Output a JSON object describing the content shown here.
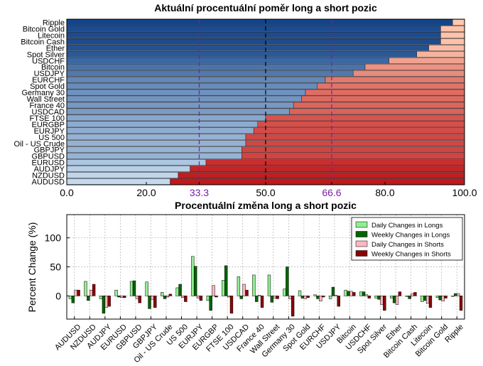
{
  "chart_data": [
    {
      "type": "bar",
      "orientation": "horizontal",
      "stacked": true,
      "title": "Aktuální procentuální poměr long a short pozic",
      "categories": [
        "AUDUSD",
        "NZDUSD",
        "AUDJPY",
        "EURUSD",
        "GBPUSD",
        "GBPJPY",
        "Oil - US Crude",
        "US 500",
        "EURJPY",
        "EURGBP",
        "FTSE 100",
        "USDCAD",
        "France 40",
        "Wall Street",
        "Germany 30",
        "Spot Gold",
        "EURCHF",
        "USDJPY",
        "Bitcoin",
        "USDCHF",
        "Spot Silver",
        "Ether",
        "Bitcoin Cash",
        "Litecoin",
        "Bitcoin Gold",
        "Ripple"
      ],
      "series": [
        {
          "name": "Long",
          "values": [
            26,
            28,
            31,
            35,
            44,
            44,
            45,
            45,
            47,
            48,
            50,
            56,
            57,
            59,
            60,
            63,
            65,
            72,
            75,
            81,
            88,
            91,
            94,
            94,
            94,
            97
          ]
        },
        {
          "name": "Short",
          "values": [
            74,
            72,
            69,
            65,
            56,
            56,
            55,
            55,
            53,
            52,
            50,
            44,
            43,
            41,
            40,
            37,
            35,
            28,
            25,
            19,
            12,
            9,
            6,
            6,
            6,
            3
          ]
        }
      ],
      "xlim": [
        0,
        100
      ],
      "xticks": [
        "0.0",
        "20.0",
        "33.3",
        "50.0",
        "66.6",
        "80.0",
        "100.0"
      ],
      "reference_lines": [
        {
          "value": 33.3,
          "label": "33.3",
          "color": "#7b1fa2"
        },
        {
          "value": 50,
          "label": "50.0",
          "color": "#000000"
        },
        {
          "value": 66.6,
          "label": "66.6",
          "color": "#7b1fa2"
        }
      ]
    },
    {
      "type": "bar",
      "title": "Procentuální změna long a short pozic",
      "ylabel": "Percent Change (%)",
      "ylim": [
        -40,
        140
      ],
      "yticks": [
        "0",
        "50",
        "100"
      ],
      "grid": true,
      "legend": "top-right",
      "categories": [
        "AUDUSD",
        "NZDUSD",
        "AUDJPY",
        "EURUSD",
        "GBPUSD",
        "GBPJPY",
        "Oil - US Crude",
        "US 500",
        "EURJPY",
        "EURGBP",
        "FTSE 100",
        "USDCAD",
        "France 40",
        "Wall Street",
        "Germany 30",
        "Spot Gold",
        "EURCHF",
        "USDJPY",
        "Bitcoin",
        "USDCHF",
        "Spot Silver",
        "Ether",
        "Bitcoin Cash",
        "Litecoin",
        "Bitcoin Gold",
        "Ripple"
      ],
      "series": [
        {
          "name": "Daily Changes in Longs",
          "color": "#90ee90",
          "values": [
            -5,
            25,
            -5,
            10,
            25,
            24,
            6,
            14,
            68,
            -8,
            27,
            33,
            36,
            36,
            12,
            9,
            2,
            -5,
            10,
            7,
            -4,
            -4,
            -1,
            -10,
            -3,
            -1
          ]
        },
        {
          "name": "Weekly Changes in Longs",
          "color": "#006400",
          "values": [
            -12,
            -8,
            -30,
            -2,
            26,
            -22,
            -5,
            20,
            51,
            -25,
            52,
            -5,
            -10,
            -11,
            50,
            -4,
            -5,
            15,
            8,
            7,
            -6,
            -12,
            -5,
            -8,
            -7,
            4
          ]
        },
        {
          "name": "Daily Changes in Shorts",
          "color": "#ffb6c1",
          "values": [
            10,
            10,
            -20,
            -3,
            -5,
            -6,
            -2,
            -3,
            -4,
            18,
            -2,
            20,
            1,
            -4,
            -5,
            -5,
            -9,
            1,
            8,
            2,
            -15,
            -15,
            4,
            -13,
            -9,
            4
          ]
        },
        {
          "name": "Weekly Changes in Shorts",
          "color": "#8b0000",
          "values": [
            10,
            20,
            -18,
            -3,
            -12,
            -20,
            3,
            -10,
            -8,
            -2,
            -30,
            10,
            -20,
            -5,
            -35,
            -3,
            -2,
            -18,
            6,
            -4,
            -25,
            7,
            6,
            -20,
            -4,
            -25
          ]
        }
      ]
    }
  ]
}
